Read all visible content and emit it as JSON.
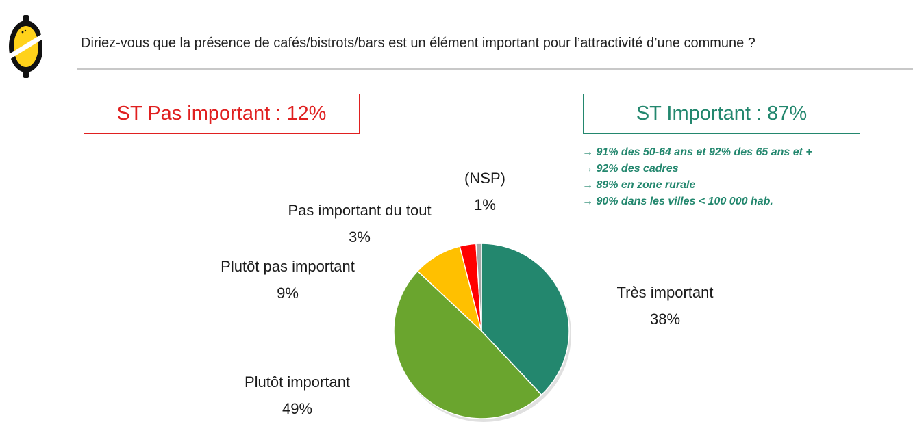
{
  "header": {
    "logo_icon": "lemon-logo-icon",
    "question": "Diriez-vous que la présence de cafés/bistrots/bars est un élément important pour l’attractivité d’une commune ?"
  },
  "summary": {
    "negative": {
      "label": "ST Pas important : 12%",
      "color": "#e02020"
    },
    "positive": {
      "label": "ST Important : 87%",
      "color": "#23876e"
    },
    "notes": [
      "→ 91% des 50-64 ans et 92% des 65 ans et +",
      "→ 92% des cadres",
      "→ 89% en zone rurale",
      "→ 90% dans les villes < 100 000 hab."
    ]
  },
  "chart_data": {
    "type": "pie",
    "slices": [
      {
        "label": "Très important",
        "value": 38,
        "value_label": "38%",
        "color": "#23876e"
      },
      {
        "label": "Plutôt important",
        "value": 49,
        "value_label": "49%",
        "color": "#6aa52e"
      },
      {
        "label": "Plutôt pas important",
        "value": 9,
        "value_label": "9%",
        "color": "#ffc000"
      },
      {
        "label": "Pas important du tout",
        "value": 3,
        "value_label": "3%",
        "color": "#ff0000"
      },
      {
        "label": "(NSP)",
        "value": 1,
        "value_label": "1%",
        "color": "#a6a6a6"
      }
    ],
    "start": "12 o'clock",
    "direction": "clockwise",
    "legend": "none"
  }
}
